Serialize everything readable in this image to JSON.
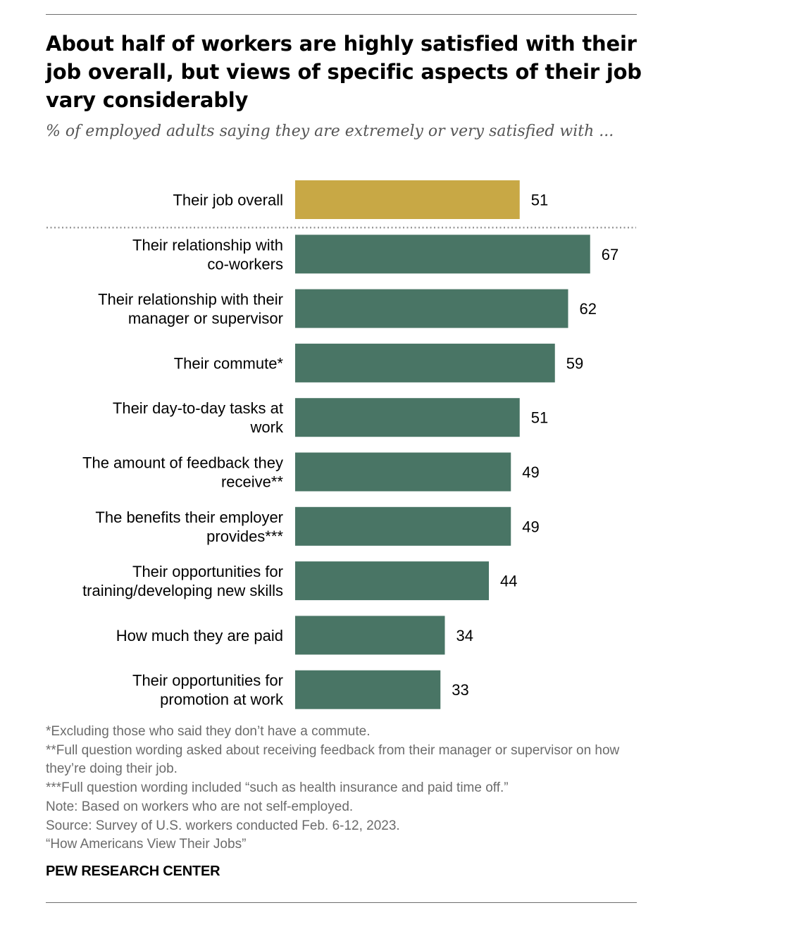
{
  "header": {
    "title": "About half of workers are highly satisfied with their job overall, but views of specific aspects of their job vary considerably",
    "subtitle": "% of employed adults saying they are extremely or very satisfied with ..."
  },
  "chart_data": {
    "type": "bar",
    "orientation": "horizontal",
    "title": "About half of workers are highly satisfied with their job overall, but views of specific aspects of their job vary considerably",
    "subtitle": "% of employed adults saying they are extremely or very satisfied with ...",
    "categories": [
      [
        "Their job overall"
      ],
      [
        "Their relationship with",
        "co-workers"
      ],
      [
        "Their relationship with their",
        "manager or supervisor"
      ],
      [
        "Their commute*"
      ],
      [
        "Their day-to-day tasks at",
        "work"
      ],
      [
        "The amount of feedback they",
        "receive**"
      ],
      [
        "The benefits their employer",
        "provides***"
      ],
      [
        "Their opportunities for",
        "training/developing new skills"
      ],
      [
        "How much they are paid"
      ],
      [
        "Their opportunities for",
        "promotion at work"
      ]
    ],
    "values": [
      51,
      67,
      62,
      59,
      51,
      49,
      49,
      44,
      34,
      33
    ],
    "highlight_index": 0,
    "separator_after_index": 0,
    "colors": {
      "highlight": "#c8a845",
      "default": "#497565",
      "separator": "#9a9a9a"
    },
    "xlim": [
      0,
      100
    ],
    "grid": false,
    "legend": "none",
    "xlabel": "",
    "ylabel": ""
  },
  "footer": {
    "notes": [
      "*Excluding those who said they don’t have a commute.",
      "**Full question wording asked about receiving feedback from their manager or supervisor on how they’re doing their job.",
      "***Full question wording included “such as health insurance and paid time off.”",
      "Note: Based on workers who are not self-employed.",
      "Source: Survey of U.S. workers conducted Feb. 6-12, 2023.",
      "“How Americans View Their Jobs”"
    ],
    "brand": "PEW RESEARCH CENTER"
  }
}
